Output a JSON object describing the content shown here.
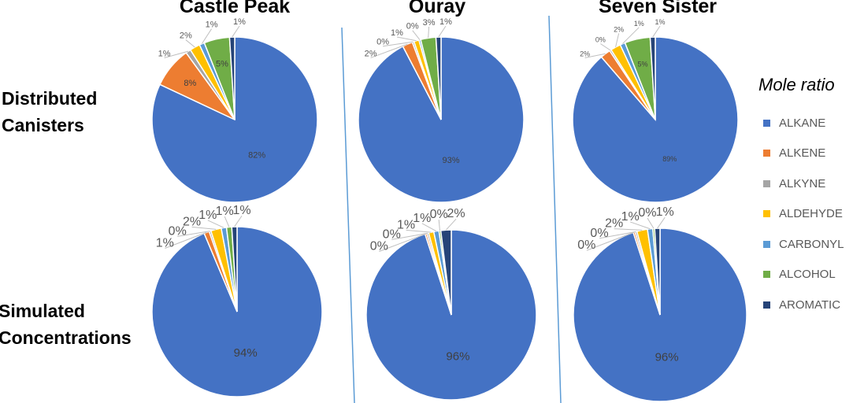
{
  "chart_data": [
    {
      "type": "pie",
      "title": "Castle Peak",
      "row": "Distributed Canisters",
      "categories": [
        "ALKANE",
        "ALKENE",
        "ALKYNE",
        "ALDEHYDE",
        "CARBONYL",
        "ALCOHOL",
        "AROMATIC"
      ],
      "values": [
        82,
        8,
        1,
        2,
        1,
        5,
        1
      ]
    },
    {
      "type": "pie",
      "title": "Ouray",
      "row": "Distributed Canisters",
      "categories": [
        "ALKANE",
        "ALKENE",
        "ALKYNE",
        "ALDEHYDE",
        "CARBONYL",
        "ALCOHOL",
        "AROMATIC"
      ],
      "values": [
        93,
        2,
        0,
        1,
        0,
        3,
        1
      ]
    },
    {
      "type": "pie",
      "title": "Seven Sister",
      "row": "Distributed Canisters",
      "categories": [
        "ALKANE",
        "ALKENE",
        "ALKYNE",
        "ALDEHYDE",
        "CARBONYL",
        "ALCOHOL",
        "AROMATIC"
      ],
      "values": [
        89,
        2,
        0,
        2,
        1,
        5,
        1
      ]
    },
    {
      "type": "pie",
      "title": "Castle Peak",
      "row": "Simulated Concentrations",
      "categories": [
        "ALKANE",
        "ALKENE",
        "ALKYNE",
        "ALDEHYDE",
        "CARBONYL",
        "ALCOHOL",
        "AROMATIC"
      ],
      "values": [
        94,
        1,
        0,
        2,
        1,
        1,
        1
      ]
    },
    {
      "type": "pie",
      "title": "Ouray",
      "row": "Simulated Concentrations",
      "categories": [
        "ALKANE",
        "ALKENE",
        "ALKYNE",
        "ALDEHYDE",
        "CARBONYL",
        "ALCOHOL",
        "AROMATIC"
      ],
      "values": [
        96,
        0,
        0,
        1,
        1,
        0,
        2
      ]
    },
    {
      "type": "pie",
      "title": "Seven Sister",
      "row": "Simulated Concentrations",
      "categories": [
        "ALKANE",
        "ALKENE",
        "ALKYNE",
        "ALDEHYDE",
        "CARBONYL",
        "ALCOHOL",
        "AROMATIC"
      ],
      "values": [
        96,
        0,
        0,
        2,
        1,
        0,
        1
      ]
    }
  ],
  "columns": [
    "Castle Peak",
    "Ouray",
    "Seven Sister"
  ],
  "rows": {
    "top": "Distributed Canisters",
    "bottom": "Simulated Concentrations"
  },
  "legend": {
    "title": "Mole ratio",
    "position": "right",
    "items": [
      {
        "label": "ALKANE",
        "color": "#4472C4"
      },
      {
        "label": "ALKENE",
        "color": "#ED7D31"
      },
      {
        "label": "ALKYNE",
        "color": "#A5A5A5"
      },
      {
        "label": "ALDEHYDE",
        "color": "#FFC000"
      },
      {
        "label": "CARBONYL",
        "color": "#5B9BD5"
      },
      {
        "label": "ALCOHOL",
        "color": "#70AD47"
      },
      {
        "label": "AROMATIC",
        "color": "#264478"
      }
    ]
  }
}
